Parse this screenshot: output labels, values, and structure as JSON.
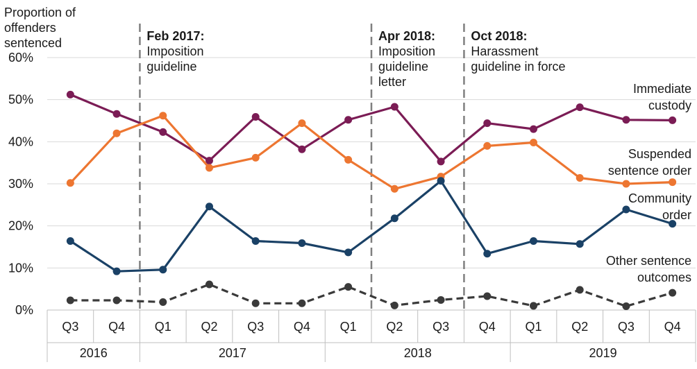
{
  "chart_data": {
    "type": "line",
    "ylabel": "Proportion of offenders sentenced",
    "ylabel_lines": [
      "Proportion of",
      "offenders",
      "sentenced"
    ],
    "ylim": [
      0,
      60
    ],
    "yticks": [
      "0%",
      "10%",
      "20%",
      "30%",
      "40%",
      "50%",
      "60%"
    ],
    "categories": [
      "Q3",
      "Q4",
      "Q1",
      "Q2",
      "Q3",
      "Q4",
      "Q1",
      "Q2",
      "Q3",
      "Q4",
      "Q1",
      "Q2",
      "Q3",
      "Q4"
    ],
    "years": [
      {
        "label": "2016",
        "span": 2
      },
      {
        "label": "2017",
        "span": 4
      },
      {
        "label": "2018",
        "span": 4
      },
      {
        "label": "2019",
        "span": 4
      }
    ],
    "series": [
      {
        "name": "Immediate custody",
        "label_lines": [
          "Immediate",
          "custody"
        ],
        "color": "#7b1c55",
        "dashed": false,
        "values": [
          51.2,
          46.6,
          42.3,
          35.5,
          45.9,
          38.2,
          45.2,
          48.3,
          35.3,
          44.4,
          43.0,
          48.2,
          45.2,
          45.1
        ]
      },
      {
        "name": "Suspended sentence order",
        "label_lines": [
          "Suspended",
          "sentence order"
        ],
        "color": "#ed7631",
        "dashed": false,
        "values": [
          30.2,
          42.0,
          46.2,
          33.8,
          36.2,
          44.4,
          35.7,
          28.8,
          31.7,
          39.0,
          39.8,
          31.4,
          30.0,
          30.4
        ]
      },
      {
        "name": "Community order",
        "label_lines": [
          "Community",
          "order"
        ],
        "color": "#1a4166",
        "dashed": false,
        "values": [
          16.4,
          9.2,
          9.6,
          24.6,
          16.4,
          15.9,
          13.7,
          21.8,
          30.7,
          13.4,
          16.4,
          15.7,
          23.9,
          20.5
        ]
      },
      {
        "name": "Other sentence outcomes",
        "label_lines": [
          "Other sentence",
          "outcomes"
        ],
        "color": "#3a3a3a",
        "dashed": true,
        "values": [
          2.3,
          2.3,
          1.9,
          6.1,
          1.6,
          1.6,
          5.5,
          1.1,
          2.4,
          3.3,
          1.0,
          4.8,
          0.9,
          4.1
        ]
      }
    ],
    "annotations": [
      {
        "at_index": 2,
        "bold": "Feb 2017:",
        "lines": [
          "Imposition",
          "guideline"
        ]
      },
      {
        "at_index": 7,
        "bold": "Apr 2018:",
        "lines": [
          "Imposition",
          "guideline",
          "letter"
        ]
      },
      {
        "at_index": 9,
        "bold": "Oct 2018:",
        "lines": [
          "Harassment",
          "guideline in force"
        ]
      }
    ],
    "grid": true,
    "legend": "inline-right"
  }
}
